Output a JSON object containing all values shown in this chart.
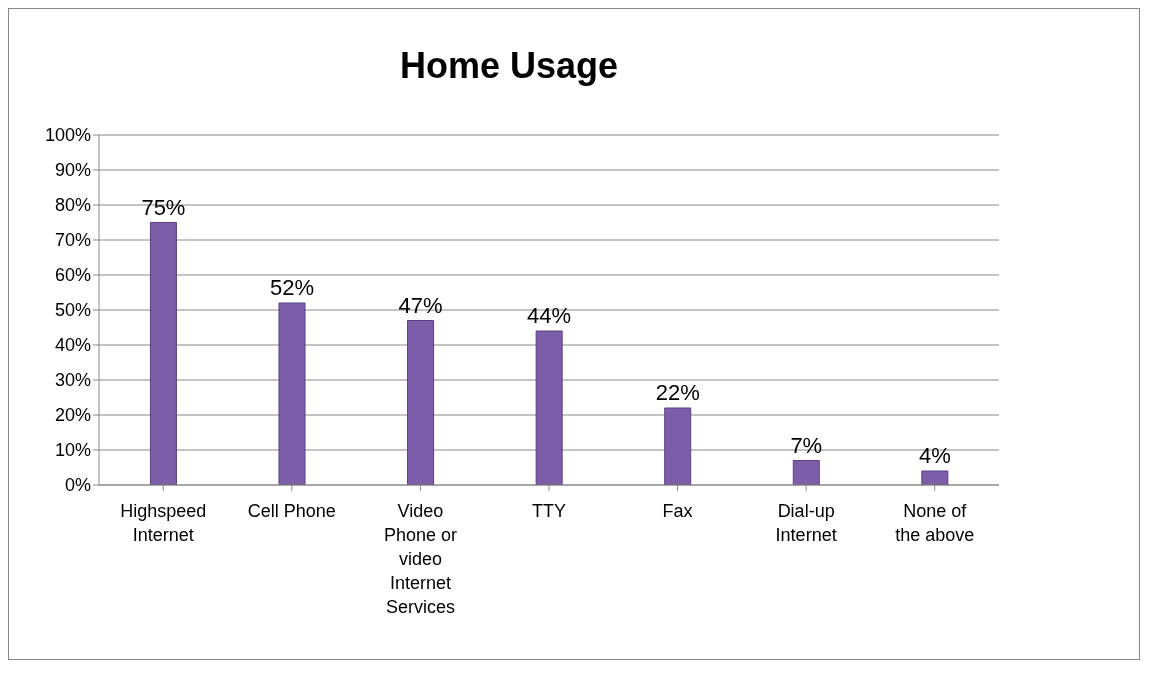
{
  "chart_data": {
    "type": "bar",
    "title": "Home Usage",
    "categories": [
      "Highspeed Internet",
      "Cell Phone",
      "Video Phone or video Internet Services",
      "TTY",
      "Fax",
      "Dial-up Internet",
      "None of the above"
    ],
    "values": [
      75,
      52,
      47,
      44,
      22,
      7,
      4
    ],
    "value_labels": [
      "75%",
      "52%",
      "47%",
      "44%",
      "22%",
      "7%",
      "4%"
    ],
    "color": "#7b5ea7",
    "ylim": [
      0,
      100
    ],
    "yticks": [
      {
        "value": 0,
        "label": "0%"
      },
      {
        "value": 10,
        "label": "10%"
      },
      {
        "value": 20,
        "label": "20%"
      },
      {
        "value": 30,
        "label": "30%"
      },
      {
        "value": 40,
        "label": "40%"
      },
      {
        "value": 50,
        "label": "50%"
      },
      {
        "value": 60,
        "label": "60%"
      },
      {
        "value": 70,
        "label": "70%"
      },
      {
        "value": 80,
        "label": "80%"
      },
      {
        "value": 90,
        "label": "90%"
      },
      {
        "value": 100,
        "label": "100%"
      }
    ],
    "grid": "y"
  }
}
